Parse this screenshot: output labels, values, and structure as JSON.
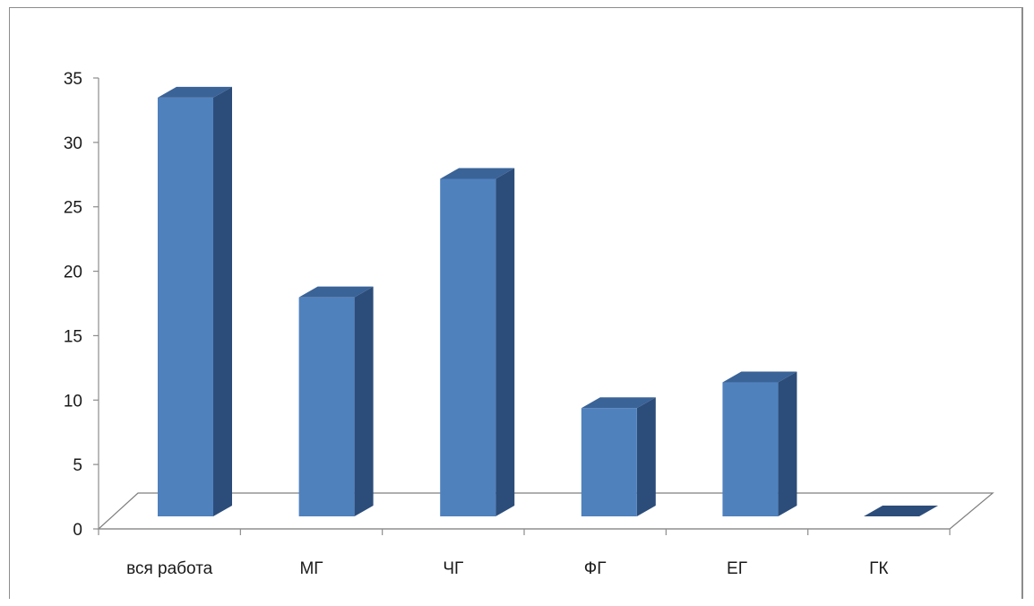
{
  "chart_data": {
    "type": "bar",
    "categories": [
      "вся работа",
      "МГ",
      "ЧГ",
      "ФГ",
      "ЕГ",
      "ГК"
    ],
    "values": [
      32.5,
      17,
      26.2,
      8.4,
      10.4,
      0
    ],
    "title": "",
    "xlabel": "",
    "ylabel": "",
    "ylim": [
      0,
      35
    ],
    "yticks": [
      0,
      5,
      10,
      15,
      20,
      25,
      30,
      35
    ],
    "grid": false,
    "legend": "none",
    "three_d": true
  },
  "colors": {
    "bar_front": "#4f81bd",
    "bar_side": "#2c4d7a",
    "bar_top": "#3a6397",
    "axis": "#8c8c8c",
    "floor": "#7f7f7f"
  }
}
